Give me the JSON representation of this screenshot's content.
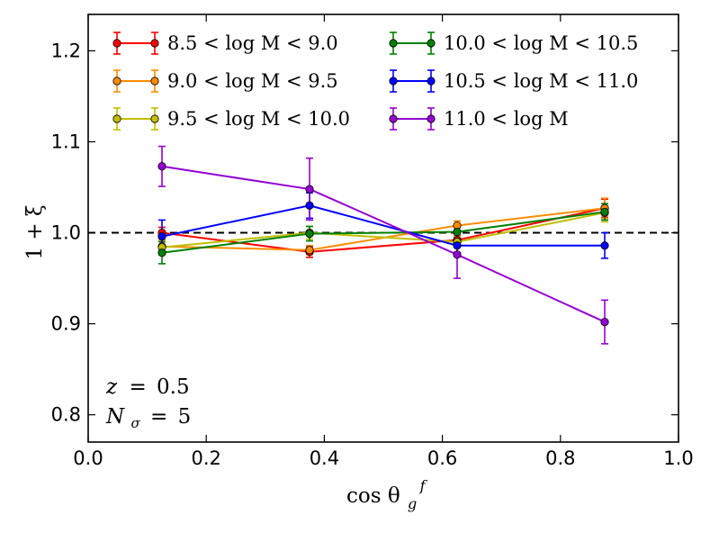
{
  "chart_data": {
    "type": "line",
    "xlabel": "cos θ",
    "xlabel_sub": "g",
    "xlabel_sup": "f",
    "ylabel": "1 + ξ",
    "xlim": [
      0.0,
      1.0
    ],
    "ylim": [
      0.77,
      1.24
    ],
    "xticks": [
      0.0,
      0.2,
      0.4,
      0.6,
      0.8,
      1.0
    ],
    "xtick_labels": [
      "0.0",
      "0.2",
      "0.4",
      "0.6",
      "0.8",
      "1.0"
    ],
    "yticks": [
      0.8,
      0.9,
      1.0,
      1.1,
      1.2
    ],
    "ytick_labels": [
      "0.8",
      "0.9",
      "1.0",
      "1.1",
      "1.2"
    ],
    "reference_line": {
      "y": 1.0,
      "style": "dashed",
      "color": "#000000"
    },
    "x": [
      0.125,
      0.375,
      0.625,
      0.875
    ],
    "series": [
      {
        "name": "8.5 < log M < 9.0",
        "color": "#ff0000",
        "values": [
          1.0,
          0.979,
          0.992,
          1.027
        ],
        "errors": [
          0.006,
          0.006,
          0.005,
          0.01
        ]
      },
      {
        "name": "9.0 < log M < 9.5",
        "color": "#ff8c00",
        "values": [
          0.985,
          0.981,
          1.008,
          1.027
        ],
        "errors": [
          0.006,
          0.005,
          0.005,
          0.011
        ]
      },
      {
        "name": "9.5 < log M < 10.0",
        "color": "#bfbf00",
        "values": [
          0.984,
          1.0,
          0.99,
          1.022
        ],
        "errors": [
          0.008,
          0.007,
          0.006,
          0.01
        ]
      },
      {
        "name": "10.0 < log M < 10.5",
        "color": "#008000",
        "values": [
          0.978,
          0.999,
          1.001,
          1.023
        ],
        "errors": [
          0.012,
          0.008,
          0.007,
          0.009
        ]
      },
      {
        "name": "10.5 < log M < 11.0",
        "color": "#0000ff",
        "values": [
          0.996,
          1.03,
          0.986,
          0.986
        ],
        "errors": [
          0.018,
          0.014,
          0.008,
          0.014
        ]
      },
      {
        "name": "11.0 < log M",
        "color": "#9400d3",
        "values": [
          1.073,
          1.048,
          0.976,
          0.902
        ],
        "errors": [
          0.022,
          0.034,
          0.026,
          0.024
        ]
      }
    ],
    "annotations": [
      {
        "label": "z",
        "value": "0.5"
      },
      {
        "label": "N",
        "label_sub": "σ",
        "value": "5"
      }
    ],
    "legend_position": "top"
  }
}
